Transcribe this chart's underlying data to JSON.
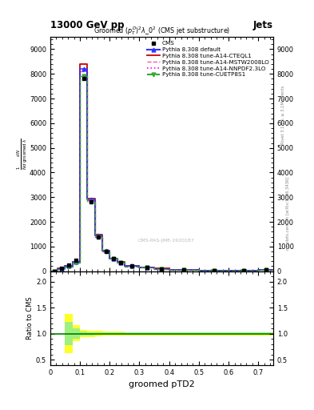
{
  "header_left": "13000 GeV pp",
  "header_right": "Jets",
  "plot_title": "Groomed $(p_T^D)^2\\lambda\\_0^2$ (CMS jet substructure)",
  "xlabel": "groomed pTD2",
  "watermark": "CMS-PAS-JME-1920187",
  "right_label": "mcplots.cern.ch [arXiv:1306.3436]",
  "right_label2": "Rivet 3.1.10, ≥ 3.1M events",
  "cms_label": "CMS",
  "bin_edges": [
    0.0,
    0.025,
    0.05,
    0.075,
    0.1,
    0.125,
    0.15,
    0.175,
    0.2,
    0.225,
    0.25,
    0.3,
    0.35,
    0.4,
    0.5,
    0.6,
    0.7,
    0.75
  ],
  "y_cms": [
    0,
    120,
    250,
    450,
    7800,
    2800,
    1400,
    800,
    500,
    350,
    200,
    150,
    100,
    60,
    30,
    15,
    50
  ],
  "y_default": [
    0,
    100,
    200,
    380,
    8200,
    2900,
    1450,
    820,
    510,
    360,
    205,
    155,
    102,
    62,
    31,
    16,
    52
  ],
  "y_cteql1": [
    0,
    105,
    210,
    390,
    8400,
    2950,
    1470,
    835,
    520,
    368,
    210,
    158,
    104,
    63,
    32,
    16,
    53
  ],
  "y_mstw": [
    0,
    95,
    190,
    370,
    8100,
    2870,
    1430,
    810,
    505,
    355,
    202,
    152,
    100,
    61,
    30,
    15,
    51
  ],
  "y_nnpdf": [
    0,
    98,
    195,
    375,
    8150,
    2890,
    1440,
    815,
    507,
    358,
    203,
    153,
    101,
    61,
    30,
    15,
    51
  ],
  "y_cuetp": [
    0,
    90,
    185,
    360,
    7900,
    2820,
    1400,
    795,
    495,
    348,
    198,
    148,
    97,
    59,
    29,
    14,
    49
  ],
  "color_cms": "black",
  "color_default": "#3333ff",
  "color_cteql1": "#cc0000",
  "color_mstw": "#ff55aa",
  "color_nnpdf": "#ff00ff",
  "color_cuetp": "#33aa33",
  "xlim": [
    0,
    0.75
  ],
  "ylim_main": [
    0,
    9500
  ],
  "ylim_ratio": [
    0.4,
    2.2
  ],
  "ratio_yticks": [
    0.5,
    1.0,
    1.5,
    2.0
  ],
  "yticks_main": [
    0,
    1000,
    2000,
    3000,
    4000,
    5000,
    6000,
    7000,
    8000,
    9000
  ],
  "ratio_band_yellow_lo": [
    1,
    1,
    0.62,
    0.85,
    0.93,
    0.94,
    0.95,
    0.96,
    0.96,
    0.96,
    0.97,
    0.97,
    0.97,
    0.97,
    0.97,
    0.97,
    0.97
  ],
  "ratio_band_yellow_hi": [
    1,
    1,
    1.38,
    1.16,
    1.07,
    1.06,
    1.05,
    1.04,
    1.04,
    1.04,
    1.03,
    1.03,
    1.03,
    1.03,
    1.03,
    1.03,
    1.03
  ],
  "ratio_band_green_lo": [
    1,
    1,
    0.78,
    0.9,
    0.96,
    0.97,
    0.975,
    0.975,
    0.98,
    0.98,
    0.98,
    0.98,
    0.98,
    0.98,
    0.98,
    0.98,
    0.98
  ],
  "ratio_band_green_hi": [
    1,
    1,
    1.22,
    1.1,
    1.04,
    1.03,
    1.025,
    1.025,
    1.02,
    1.02,
    1.02,
    1.02,
    1.02,
    1.02,
    1.02,
    1.02,
    1.02
  ]
}
